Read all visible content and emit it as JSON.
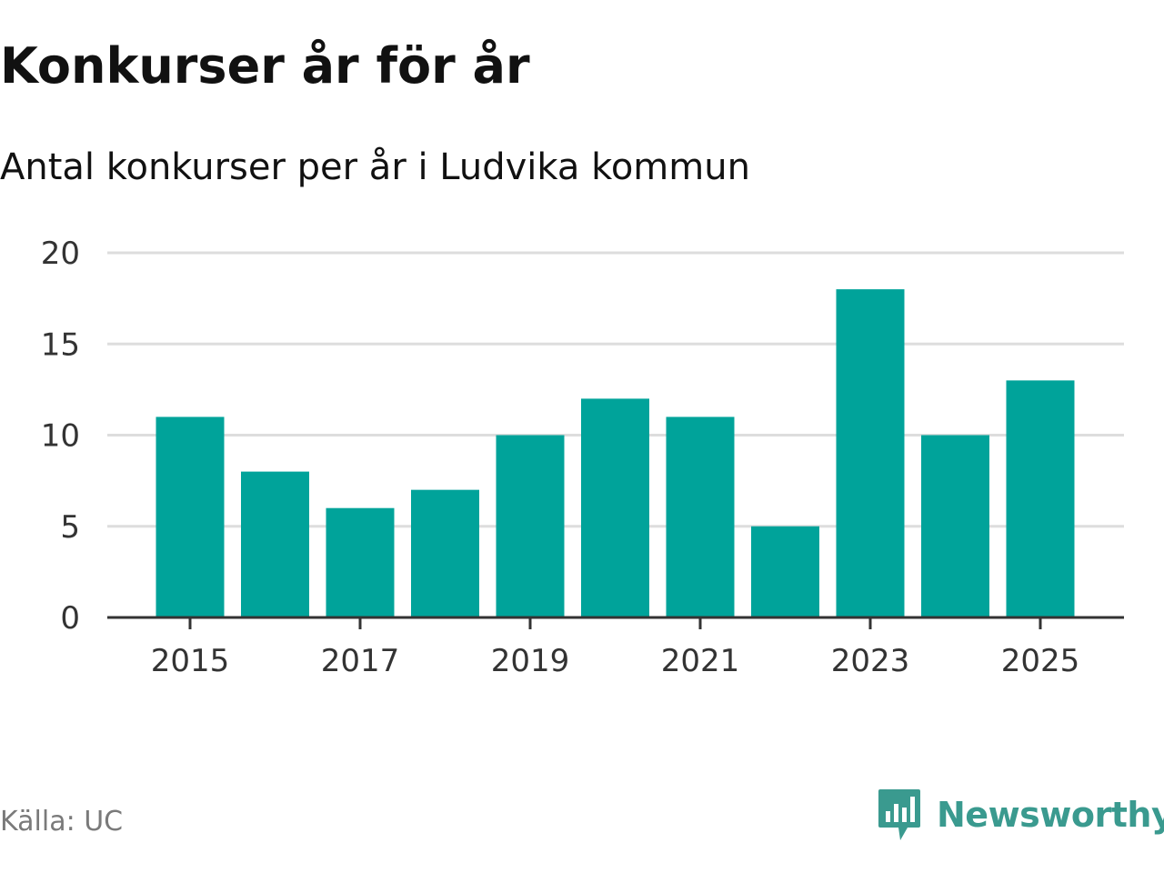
{
  "header": {
    "title": "Konkurser år för år",
    "subtitle": "Antal konkurser per år i Ludvika kommun"
  },
  "footer": {
    "source": "Källa: UC",
    "brand_name": "Newsworthy",
    "brand_icon": "newsworthy-logo-icon"
  },
  "colors": {
    "bar": "#00a39a",
    "grid": "#dddddd",
    "axis": "#333333",
    "text": "#111111",
    "muted": "#7a7a7a",
    "brand": "#3a9a8f"
  },
  "chart_data": {
    "type": "bar",
    "title": "Konkurser år för år",
    "subtitle": "Antal konkurser per år i Ludvika kommun",
    "xlabel": "",
    "ylabel": "",
    "categories": [
      "2015",
      "2016",
      "2017",
      "2018",
      "2019",
      "2020",
      "2021",
      "2022",
      "2023",
      "2024",
      "2025"
    ],
    "values": [
      11,
      8,
      6,
      7,
      10,
      12,
      11,
      5,
      18,
      10,
      13
    ],
    "ylim": [
      0,
      20
    ],
    "y_ticks": [
      0,
      5,
      10,
      15,
      20
    ],
    "x_tick_labels": [
      "2015",
      "2017",
      "2019",
      "2021",
      "2023",
      "2025"
    ],
    "grid": true,
    "legend": "none"
  }
}
